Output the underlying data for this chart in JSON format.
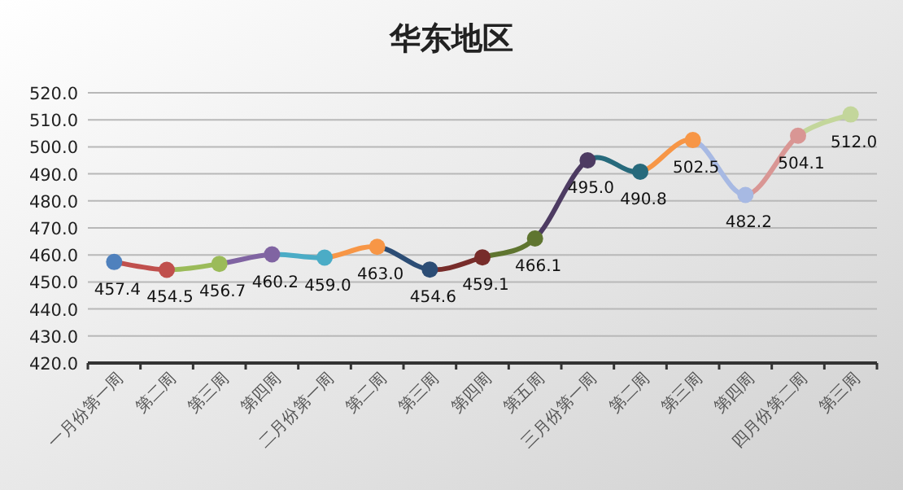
{
  "chart_data": {
    "type": "line",
    "title": "华东地区",
    "categories": [
      "一月份第一周",
      "第二周",
      "第三周",
      "第四周",
      "二月份第一周",
      "第二周",
      "第三周",
      "第四周",
      "第五周",
      "三月份第一周",
      "第二周",
      "第三周",
      "第四周",
      "四月份第二周",
      "第三周"
    ],
    "series": [
      {
        "values": [
          457.4,
          454.5,
          456.7,
          460.2,
          459.0,
          463.0,
          454.6,
          459.1,
          466.1,
          495.0,
          490.8,
          502.5,
          482.2,
          504.1,
          512.0
        ],
        "value_labels": [
          "457.4",
          "454.5",
          "456.7",
          "460.2",
          "459.0",
          "463.0",
          "454.6",
          "459.1",
          "466.1",
          "495.0",
          "490.8",
          "502.5",
          "482.2",
          "504.1",
          "512.0"
        ],
        "colors": [
          "#4f81bd",
          "#c0504d",
          "#9bbb59",
          "#8064a2",
          "#4bacc6",
          "#f79646",
          "#2c4d75",
          "#772c2a",
          "#5f7530",
          "#4d3b62",
          "#276a7c",
          "#f79646",
          "#a7b9e3",
          "#d99694",
          "#c3d69b"
        ]
      }
    ],
    "ylim": [
      420,
      520
    ],
    "yticks": [
      {
        "value": 420,
        "label": "420.0"
      },
      {
        "value": 430,
        "label": "430.0"
      },
      {
        "value": 440,
        "label": "440.0"
      },
      {
        "value": 450,
        "label": "450.0"
      },
      {
        "value": 460,
        "label": "460.0"
      },
      {
        "value": 470,
        "label": "470.0"
      },
      {
        "value": 480,
        "label": "480.0"
      },
      {
        "value": 490,
        "label": "490.0"
      },
      {
        "value": 500,
        "label": "500.0"
      },
      {
        "value": 510,
        "label": "510.0"
      },
      {
        "value": 520,
        "label": "520.0"
      }
    ],
    "grid": "y",
    "marker": "circle",
    "line_style": "solid"
  }
}
